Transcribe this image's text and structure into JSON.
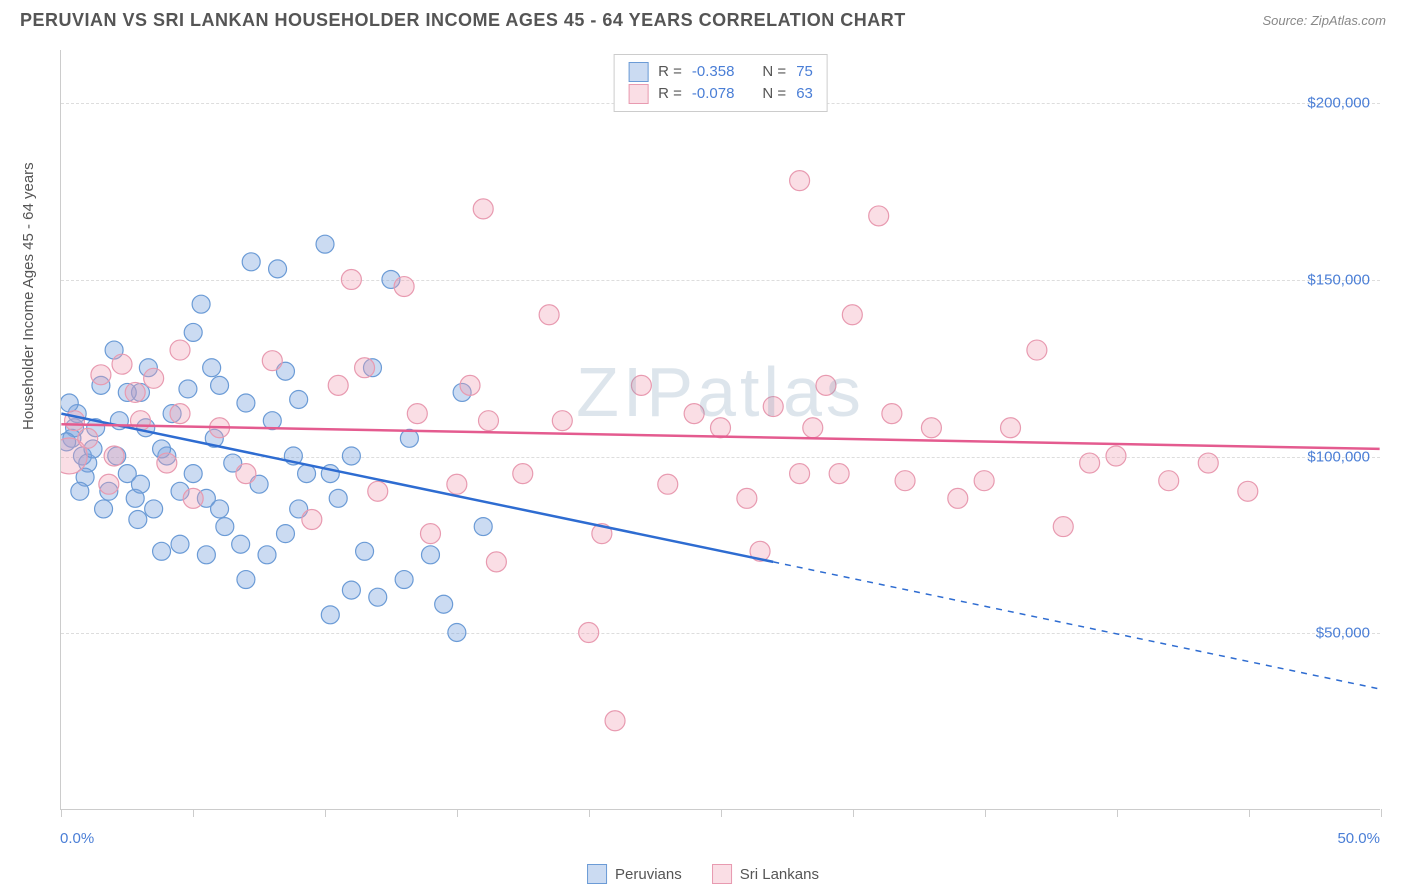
{
  "title": "PERUVIAN VS SRI LANKAN HOUSEHOLDER INCOME AGES 45 - 64 YEARS CORRELATION CHART",
  "source_label": "Source: ",
  "source_name": "ZipAtlas.com",
  "ylabel": "Householder Income Ages 45 - 64 years",
  "watermark": "ZIPatlas",
  "chart": {
    "type": "scatter",
    "xlim": [
      0,
      50
    ],
    "ylim": [
      0,
      215000
    ],
    "x_axis_unit": "%",
    "y_axis_unit": "$",
    "grid_color": "#dddddd",
    "axis_color": "#cccccc",
    "tick_label_color": "#4a7ed6",
    "tick_fontsize": 15,
    "yticks": [
      {
        "v": 50000,
        "label": "$50,000"
      },
      {
        "v": 100000,
        "label": "$100,000"
      },
      {
        "v": 150000,
        "label": "$150,000"
      },
      {
        "v": 200000,
        "label": "$200,000"
      }
    ],
    "xticks": [
      0,
      5,
      10,
      15,
      20,
      25,
      30,
      35,
      40,
      45,
      50
    ],
    "xtick_labels": {
      "0": "0.0%",
      "50": "50.0%"
    },
    "series": [
      {
        "name": "Peruvians",
        "color_fill": "rgba(124, 166, 222, 0.4)",
        "color_stroke": "#6b9bd6",
        "trend_color": "#2e6cd1",
        "marker_radius_default": 9,
        "R": "-0.358",
        "N": "75",
        "trend": {
          "x1": 0,
          "y1": 112000,
          "x2": 27,
          "y2": 70000,
          "x2_ext": 50,
          "y2_ext": 34000
        },
        "points": [
          {
            "x": 0.5,
            "y": 108000
          },
          {
            "x": 0.4,
            "y": 105000
          },
          {
            "x": 0.6,
            "y": 112000
          },
          {
            "x": 0.8,
            "y": 100000
          },
          {
            "x": 0.3,
            "y": 115000
          },
          {
            "x": 1.0,
            "y": 98000
          },
          {
            "x": 1.5,
            "y": 120000
          },
          {
            "x": 2.0,
            "y": 130000
          },
          {
            "x": 1.2,
            "y": 102000
          },
          {
            "x": 2.5,
            "y": 95000
          },
          {
            "x": 2.2,
            "y": 110000
          },
          {
            "x": 2.8,
            "y": 88000
          },
          {
            "x": 3.0,
            "y": 118000
          },
          {
            "x": 3.3,
            "y": 125000
          },
          {
            "x": 3.5,
            "y": 85000
          },
          {
            "x": 3.0,
            "y": 92000
          },
          {
            "x": 4.0,
            "y": 100000
          },
          {
            "x": 4.2,
            "y": 112000
          },
          {
            "x": 4.5,
            "y": 90000
          },
          {
            "x": 5.0,
            "y": 135000
          },
          {
            "x": 5.0,
            "y": 95000
          },
          {
            "x": 5.3,
            "y": 143000
          },
          {
            "x": 5.5,
            "y": 88000
          },
          {
            "x": 5.8,
            "y": 105000
          },
          {
            "x": 6.0,
            "y": 120000
          },
          {
            "x": 6.2,
            "y": 80000
          },
          {
            "x": 6.5,
            "y": 98000
          },
          {
            "x": 7.0,
            "y": 115000
          },
          {
            "x": 7.2,
            "y": 155000
          },
          {
            "x": 6.0,
            "y": 85000
          },
          {
            "x": 7.5,
            "y": 92000
          },
          {
            "x": 8.0,
            "y": 110000
          },
          {
            "x": 8.2,
            "y": 153000
          },
          {
            "x": 8.5,
            "y": 78000
          },
          {
            "x": 8.5,
            "y": 124000
          },
          {
            "x": 9.0,
            "y": 116000
          },
          {
            "x": 9.3,
            "y": 95000
          },
          {
            "x": 9.0,
            "y": 85000
          },
          {
            "x": 10.0,
            "y": 160000
          },
          {
            "x": 10.2,
            "y": 55000
          },
          {
            "x": 10.5,
            "y": 88000
          },
          {
            "x": 11.0,
            "y": 62000
          },
          {
            "x": 11.5,
            "y": 73000
          },
          {
            "x": 11.8,
            "y": 125000
          },
          {
            "x": 12.0,
            "y": 60000
          },
          {
            "x": 12.5,
            "y": 150000
          },
          {
            "x": 13.0,
            "y": 65000
          },
          {
            "x": 13.2,
            "y": 105000
          },
          {
            "x": 14.0,
            "y": 72000
          },
          {
            "x": 14.5,
            "y": 58000
          },
          {
            "x": 15.0,
            "y": 50000
          },
          {
            "x": 2.5,
            "y": 118000
          },
          {
            "x": 1.8,
            "y": 90000
          },
          {
            "x": 0.9,
            "y": 94000
          },
          {
            "x": 4.5,
            "y": 75000
          },
          {
            "x": 3.8,
            "y": 73000
          },
          {
            "x": 6.8,
            "y": 75000
          },
          {
            "x": 7.8,
            "y": 72000
          },
          {
            "x": 10.2,
            "y": 95000
          },
          {
            "x": 11.0,
            "y": 100000
          },
          {
            "x": 7.0,
            "y": 65000
          },
          {
            "x": 5.5,
            "y": 72000
          },
          {
            "x": 3.2,
            "y": 108000
          },
          {
            "x": 1.3,
            "y": 108000
          },
          {
            "x": 0.7,
            "y": 90000
          },
          {
            "x": 2.1,
            "y": 100000
          },
          {
            "x": 4.8,
            "y": 119000
          },
          {
            "x": 5.7,
            "y": 125000
          },
          {
            "x": 8.8,
            "y": 100000
          },
          {
            "x": 3.8,
            "y": 102000
          },
          {
            "x": 1.6,
            "y": 85000
          },
          {
            "x": 2.9,
            "y": 82000
          },
          {
            "x": 15.2,
            "y": 118000
          },
          {
            "x": 16.0,
            "y": 80000
          },
          {
            "x": 0.2,
            "y": 104000
          }
        ]
      },
      {
        "name": "Sri Lankans",
        "color_fill": "rgba(240, 160, 180, 0.35)",
        "color_stroke": "#e89ab0",
        "trend_color": "#e45b8f",
        "marker_radius_default": 10,
        "R": "-0.078",
        "N": "63",
        "trend": {
          "x1": 0,
          "y1": 109000,
          "x2": 50,
          "y2": 102000,
          "x2_ext": 50,
          "y2_ext": 102000
        },
        "points": [
          {
            "x": 0.3,
            "y": 100000,
            "r": 18
          },
          {
            "x": 0.5,
            "y": 110000
          },
          {
            "x": 1.0,
            "y": 105000
          },
          {
            "x": 1.5,
            "y": 123000
          },
          {
            "x": 2.0,
            "y": 100000
          },
          {
            "x": 2.3,
            "y": 126000
          },
          {
            "x": 2.8,
            "y": 118000
          },
          {
            "x": 3.5,
            "y": 122000
          },
          {
            "x": 4.0,
            "y": 98000
          },
          {
            "x": 4.5,
            "y": 112000
          },
          {
            "x": 5.0,
            "y": 88000
          },
          {
            "x": 6.0,
            "y": 108000
          },
          {
            "x": 7.0,
            "y": 95000
          },
          {
            "x": 8.0,
            "y": 127000
          },
          {
            "x": 4.5,
            "y": 130000
          },
          {
            "x": 9.5,
            "y": 82000
          },
          {
            "x": 10.5,
            "y": 120000
          },
          {
            "x": 11.0,
            "y": 150000
          },
          {
            "x": 11.5,
            "y": 125000
          },
          {
            "x": 12.0,
            "y": 90000
          },
          {
            "x": 13.0,
            "y": 148000
          },
          {
            "x": 13.5,
            "y": 112000
          },
          {
            "x": 14.0,
            "y": 78000
          },
          {
            "x": 15.0,
            "y": 92000
          },
          {
            "x": 15.5,
            "y": 120000
          },
          {
            "x": 16.0,
            "y": 170000
          },
          {
            "x": 16.5,
            "y": 70000
          },
          {
            "x": 17.5,
            "y": 95000
          },
          {
            "x": 18.5,
            "y": 140000
          },
          {
            "x": 19.0,
            "y": 110000
          },
          {
            "x": 20.0,
            "y": 50000
          },
          {
            "x": 20.5,
            "y": 78000
          },
          {
            "x": 21.0,
            "y": 25000
          },
          {
            "x": 22.0,
            "y": 120000
          },
          {
            "x": 23.0,
            "y": 92000
          },
          {
            "x": 24.0,
            "y": 112000
          },
          {
            "x": 25.0,
            "y": 108000
          },
          {
            "x": 26.0,
            "y": 88000
          },
          {
            "x": 26.5,
            "y": 73000
          },
          {
            "x": 28.0,
            "y": 178000
          },
          {
            "x": 28.5,
            "y": 108000
          },
          {
            "x": 29.0,
            "y": 120000
          },
          {
            "x": 29.5,
            "y": 95000
          },
          {
            "x": 30.0,
            "y": 140000
          },
          {
            "x": 31.0,
            "y": 168000
          },
          {
            "x": 31.5,
            "y": 112000
          },
          {
            "x": 32.0,
            "y": 93000
          },
          {
            "x": 33.0,
            "y": 108000
          },
          {
            "x": 34.0,
            "y": 88000
          },
          {
            "x": 35.0,
            "y": 93000
          },
          {
            "x": 37.0,
            "y": 130000
          },
          {
            "x": 28.0,
            "y": 95000
          },
          {
            "x": 36.0,
            "y": 108000
          },
          {
            "x": 38.0,
            "y": 80000
          },
          {
            "x": 39.0,
            "y": 98000
          },
          {
            "x": 40.0,
            "y": 100000
          },
          {
            "x": 42.0,
            "y": 93000
          },
          {
            "x": 43.5,
            "y": 98000
          },
          {
            "x": 45.0,
            "y": 90000
          },
          {
            "x": 1.8,
            "y": 92000
          },
          {
            "x": 3.0,
            "y": 110000
          },
          {
            "x": 27.0,
            "y": 114000
          },
          {
            "x": 16.2,
            "y": 110000
          }
        ]
      }
    ]
  }
}
